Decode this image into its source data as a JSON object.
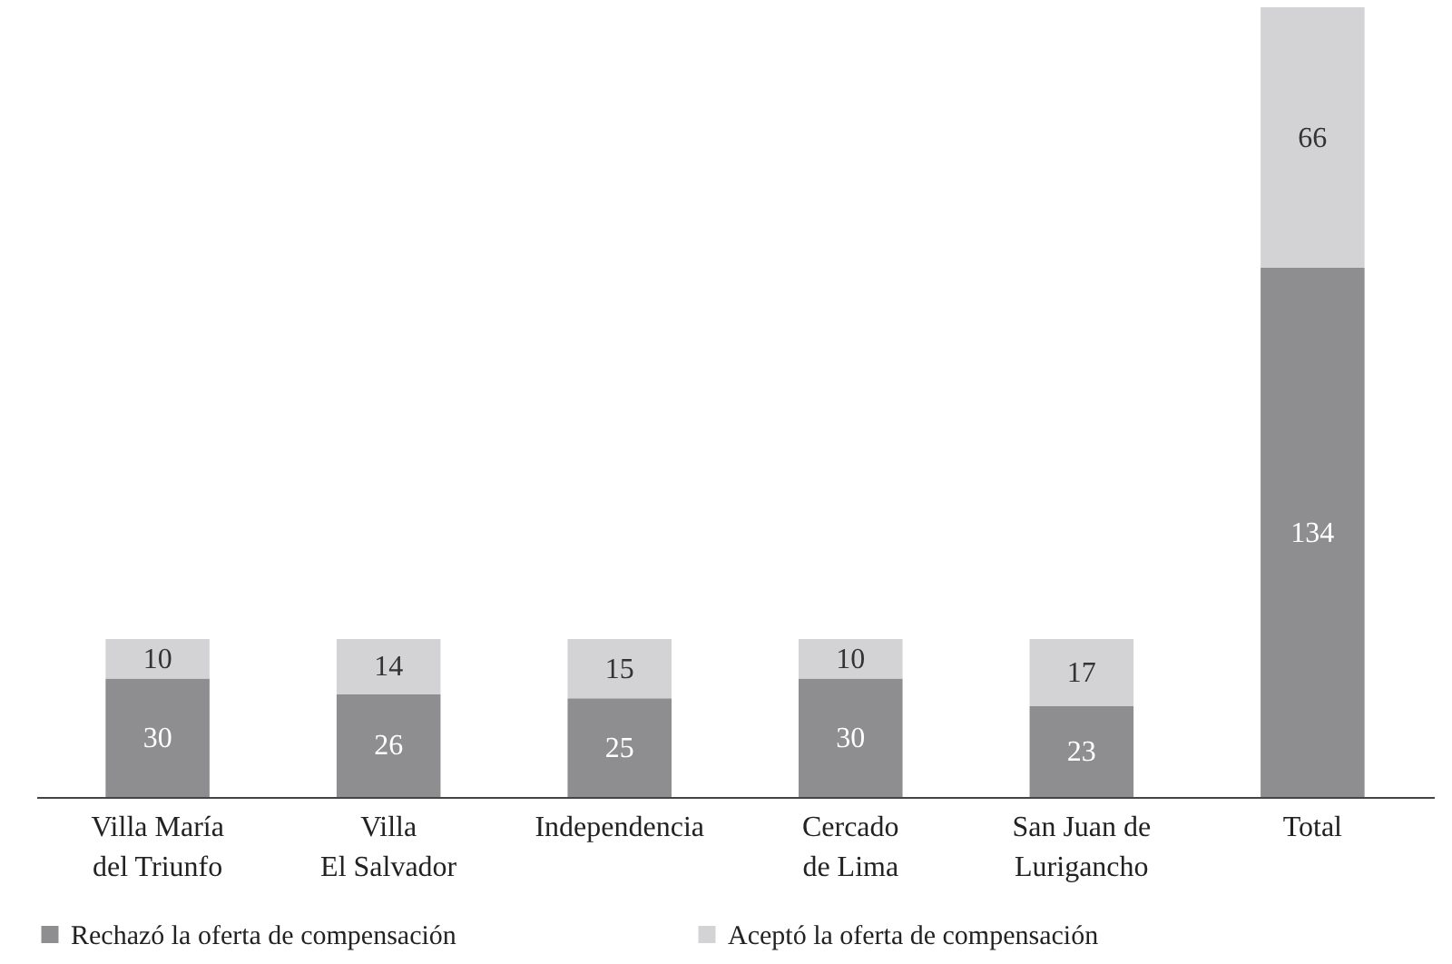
{
  "chart_data": {
    "type": "bar",
    "stacked": true,
    "data_labels": true,
    "legend": "bottom",
    "categories": [
      "Villa María\ndel Triunfo",
      "Villa\nEl Salvador",
      "Independencia",
      "Cercado\nde Lima",
      "San Juan de\nLurigancho",
      "Total"
    ],
    "series": [
      {
        "name": "Rechazó la oferta de compensación",
        "color": "#8e8e90",
        "values": [
          30,
          26,
          25,
          30,
          23,
          134
        ]
      },
      {
        "name": "Aceptó la oferta de compensación",
        "color": "#d3d3d5",
        "values": [
          10,
          14,
          15,
          10,
          17,
          66
        ]
      }
    ]
  }
}
